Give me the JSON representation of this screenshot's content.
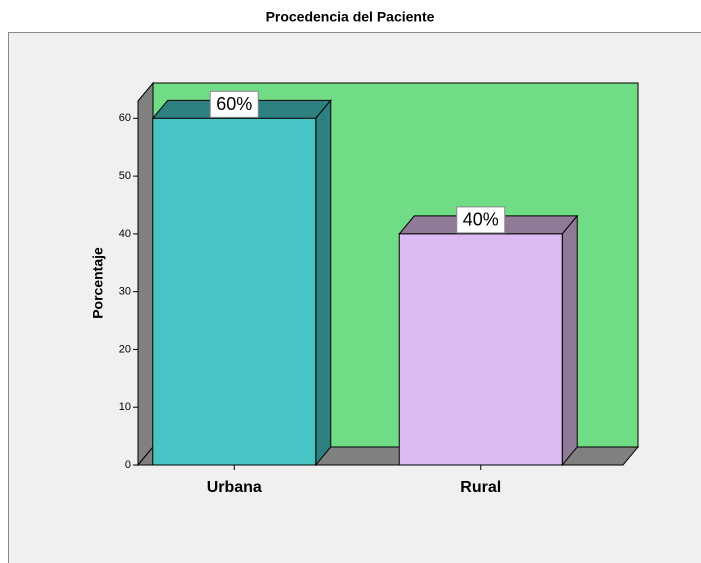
{
  "chart_data": {
    "type": "bar3d",
    "title": "Procedencia del Paciente",
    "ylabel": "Porcentaje",
    "categories": [
      "Urbana",
      "Rural"
    ],
    "values": [
      60,
      40
    ],
    "value_labels": [
      "60%",
      "40%"
    ],
    "colors": [
      "#48c4c4",
      "#dcbaf2"
    ],
    "side_colors": [
      "#2e7f80",
      "#8f7a98"
    ],
    "ylim": [
      0,
      63
    ],
    "yticks": [
      0,
      10,
      20,
      30,
      40,
      50,
      60
    ]
  }
}
